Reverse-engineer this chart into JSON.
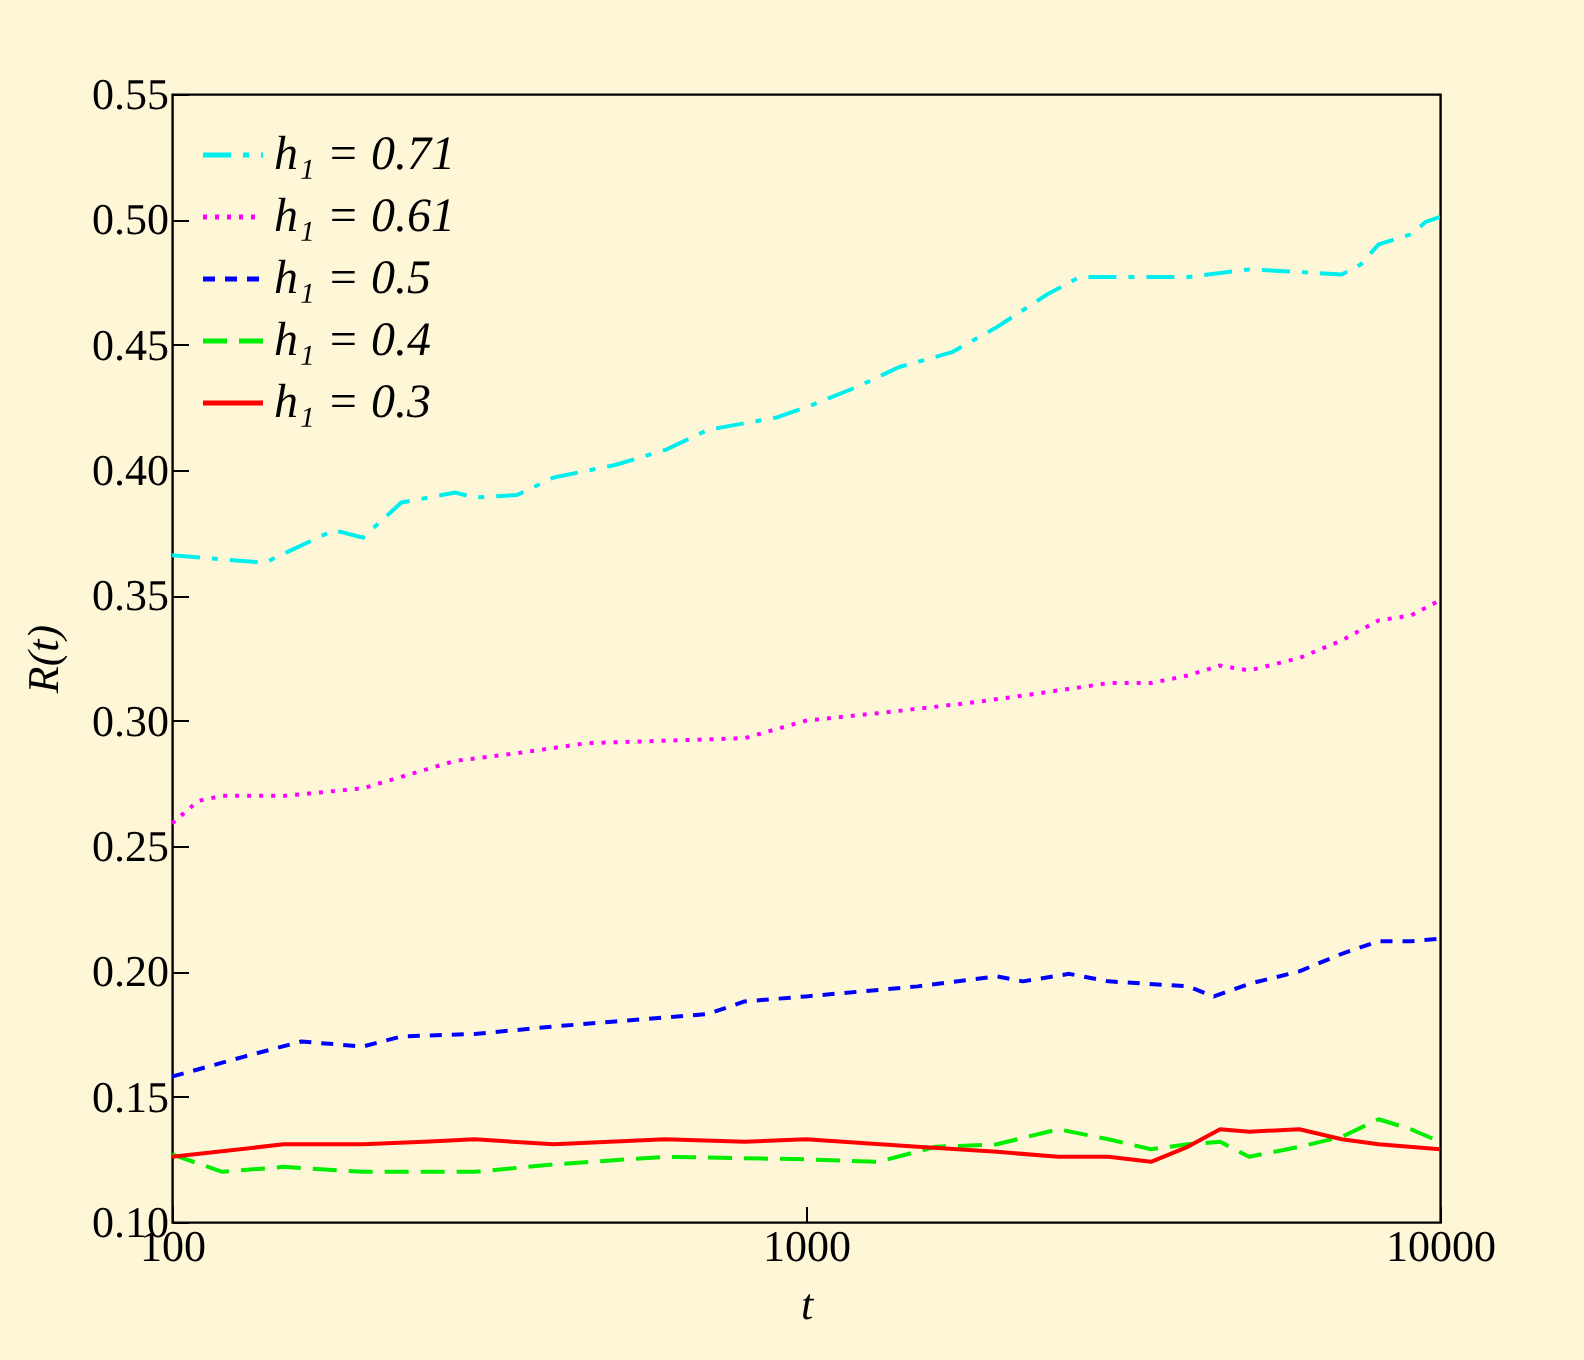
{
  "chart_data": {
    "type": "line",
    "xlabel": "t",
    "ylabel": "R(t)",
    "log": "x",
    "xlim": [
      100,
      10000
    ],
    "xticks": [
      100,
      1000,
      10000
    ],
    "ylim": [
      0.1,
      0.55
    ],
    "yticks": [
      {
        "value": 0.1,
        "label": "0.10"
      },
      0.15,
      {
        "value": 0.2,
        "label": "0.20"
      },
      0.25,
      {
        "value": 0.3,
        "label": "0.30"
      },
      0.35,
      {
        "value": 0.4,
        "label": "0.40"
      },
      0.45,
      {
        "value": 0.5,
        "label": "0.50"
      },
      0.55
    ],
    "grid": false,
    "legend": "top left",
    "series": [
      {
        "name": "h₁ = 0.71",
        "color": "#00eeee",
        "line_style": "dashdot",
        "x": [
          100,
          140,
          180,
          200,
          230,
          280,
          300,
          350,
          400,
          500,
          600,
          700,
          900,
          1000,
          1200,
          1400,
          1700,
          2000,
          2400,
          2700,
          3000,
          4000,
          5000,
          6000,
          7000,
          7500,
          8000,
          9000,
          9500,
          10000
        ],
        "values": [
          0.366,
          0.363,
          0.376,
          0.373,
          0.387,
          0.391,
          0.389,
          0.39,
          0.397,
          0.402,
          0.408,
          0.416,
          0.421,
          0.425,
          0.433,
          0.441,
          0.447,
          0.457,
          0.47,
          0.477,
          0.477,
          0.477,
          0.48,
          0.479,
          0.478,
          0.482,
          0.49,
          0.494,
          0.499,
          0.501
        ]
      },
      {
        "name": "h₁ = 0.61",
        "color": "#ff00ff",
        "line_style": "dotted",
        "x": [
          100,
          110,
          120,
          150,
          200,
          240,
          280,
          350,
          450,
          600,
          800,
          1000,
          1300,
          1800,
          2200,
          3000,
          3500,
          4000,
          4500,
          5000,
          6000,
          7000,
          8000,
          9000,
          10000
        ],
        "values": [
          0.259,
          0.268,
          0.27,
          0.27,
          0.273,
          0.279,
          0.284,
          0.287,
          0.291,
          0.292,
          0.293,
          0.3,
          0.303,
          0.307,
          0.31,
          0.315,
          0.315,
          0.318,
          0.322,
          0.32,
          0.325,
          0.332,
          0.34,
          0.342,
          0.348
        ]
      },
      {
        "name": "h₁ = 0.5",
        "color": "#0000ff",
        "line_style": "dashed",
        "x": [
          100,
          130,
          160,
          200,
          230,
          300,
          400,
          500,
          700,
          800,
          1000,
          1500,
          2000,
          2200,
          2600,
          3000,
          4000,
          4400,
          5000,
          6000,
          7000,
          8000,
          9000,
          10000
        ],
        "values": [
          0.158,
          0.166,
          0.172,
          0.17,
          0.174,
          0.175,
          0.178,
          0.18,
          0.183,
          0.188,
          0.19,
          0.194,
          0.198,
          0.196,
          0.199,
          0.196,
          0.194,
          0.19,
          0.195,
          0.2,
          0.207,
          0.212,
          0.212,
          0.213
        ]
      },
      {
        "name": "h₁ = 0.4",
        "color": "#00ee00",
        "line_style": "longdashed",
        "x": [
          100,
          120,
          150,
          200,
          300,
          400,
          600,
          1000,
          1300,
          1600,
          2000,
          2500,
          3000,
          3500,
          4000,
          4500,
          5000,
          6000,
          7000,
          8000,
          9000,
          10000
        ],
        "values": [
          0.127,
          0.12,
          0.122,
          0.12,
          0.12,
          0.123,
          0.126,
          0.125,
          0.124,
          0.13,
          0.131,
          0.137,
          0.133,
          0.129,
          0.131,
          0.132,
          0.126,
          0.13,
          0.134,
          0.141,
          0.137,
          0.132
        ]
      },
      {
        "name": "h₁ = 0.3",
        "color": "#ff0000",
        "line_style": "solid",
        "x": [
          100,
          150,
          200,
          250,
          300,
          400,
          600,
          800,
          1000,
          1500,
          2000,
          2500,
          3000,
          3500,
          4000,
          4500,
          5000,
          6000,
          7000,
          8000,
          10000
        ],
        "values": [
          0.126,
          0.131,
          0.131,
          0.132,
          0.133,
          0.131,
          0.133,
          0.132,
          0.133,
          0.13,
          0.128,
          0.126,
          0.126,
          0.124,
          0.13,
          0.137,
          0.136,
          0.137,
          0.133,
          0.131,
          0.129
        ]
      }
    ]
  }
}
